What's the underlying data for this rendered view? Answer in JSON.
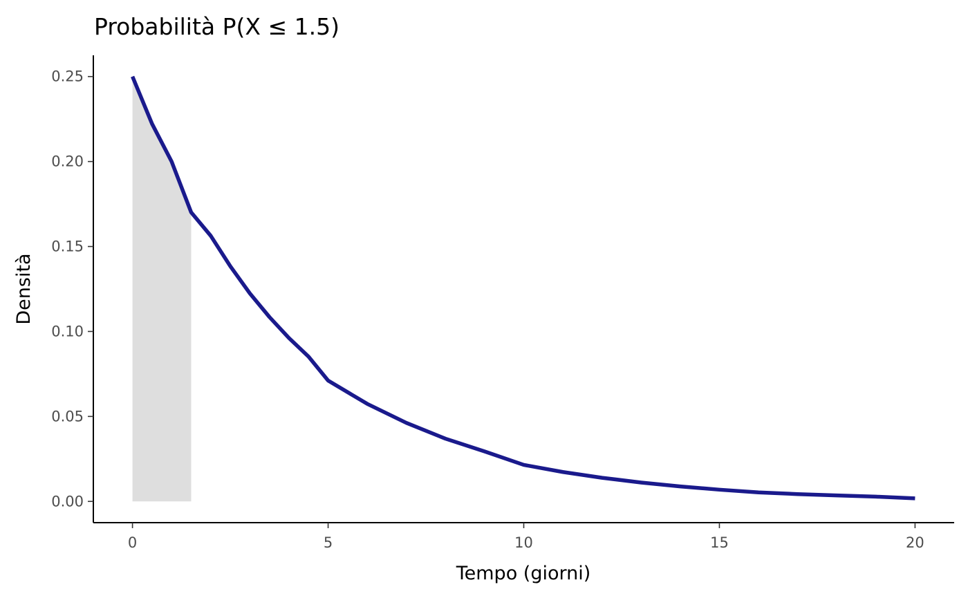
{
  "chart_data": {
    "type": "line",
    "title": "Probabilità P(X ≤ 1.5)",
    "xlabel": "Tempo (giorni)",
    "ylabel": "Densità",
    "xlim": [
      -1,
      21
    ],
    "ylim": [
      -0.0125,
      0.2625
    ],
    "x_ticks": [
      0,
      5,
      10,
      15,
      20
    ],
    "x_tick_labels": [
      "0",
      "5",
      "10",
      "15",
      "20"
    ],
    "y_ticks": [
      0,
      0.05,
      0.1,
      0.15,
      0.2,
      0.25
    ],
    "y_tick_labels": [
      "0.00",
      "0.05",
      "0.10",
      "0.15",
      "0.20",
      "0.25"
    ],
    "grid": false,
    "series": [
      {
        "color": "#1a1a8c",
        "x": [
          0,
          0.5,
          1,
          1.5,
          2,
          2.5,
          3,
          3.5,
          4,
          4.5,
          5,
          6,
          7,
          8,
          9,
          10,
          11,
          12,
          13,
          14,
          15,
          16,
          17,
          18,
          19,
          20
        ],
        "y": [
          0.25,
          0.2222,
          0.2,
          0.1701,
          0.1563,
          0.1384,
          0.1224,
          0.1085,
          0.0961,
          0.0852,
          0.0711,
          0.0574,
          0.0462,
          0.0369,
          0.0294,
          0.0215,
          0.0173,
          0.0139,
          0.0111,
          0.0088,
          0.0069,
          0.0053,
          0.0043,
          0.0035,
          0.0028,
          0.0018
        ]
      }
    ],
    "shaded_area": {
      "x_from": 0,
      "x_to": 1.5,
      "color": "#dedede"
    }
  }
}
